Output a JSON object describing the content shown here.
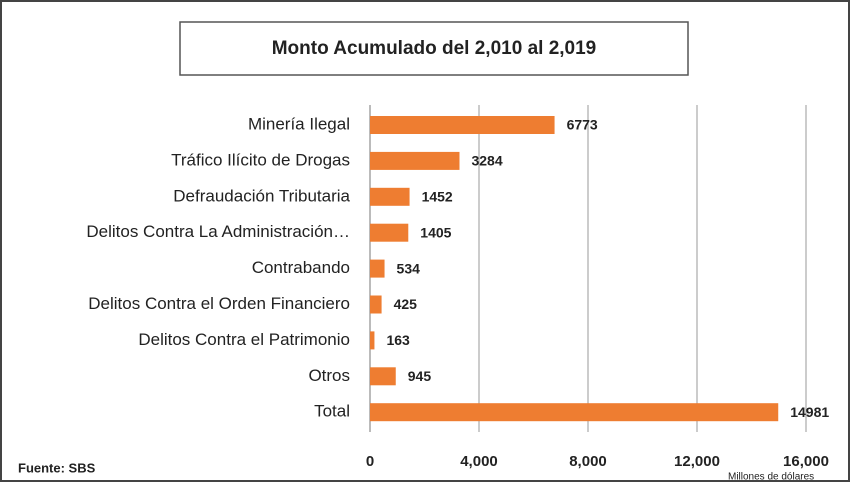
{
  "chart_data": {
    "type": "bar",
    "orientation": "horizontal",
    "title": "Monto Acumulado del 2,010 al 2,019",
    "categories": [
      "Minería Ilegal",
      "Tráfico Ilícito de Drogas",
      "Defraudación Tributaria",
      "Delitos Contra La Administración…",
      "Contrabando",
      "Delitos Contra el Orden Financiero",
      "Delitos Contra el Patrimonio",
      "Otros",
      "Total"
    ],
    "values": [
      6773,
      3284,
      1452,
      1405,
      534,
      425,
      163,
      945,
      14981
    ],
    "color": "#ee7d31",
    "xlim": [
      0,
      16000
    ],
    "xticks": [
      0,
      {
        "value": 4000,
        "label": "4,000"
      },
      {
        "value": 8000,
        "label": "8,000"
      },
      {
        "value": 12000,
        "label": "12,000"
      },
      {
        "value": 16000,
        "label": "16,000"
      }
    ],
    "grid": true,
    "x_label": "Millones de dólares",
    "source": "Fuente: SBS"
  }
}
